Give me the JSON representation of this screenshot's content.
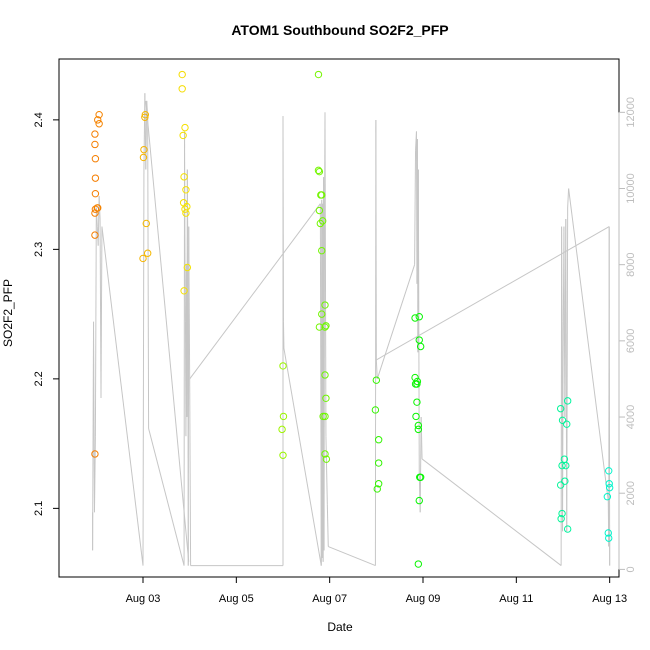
{
  "chart_data": {
    "type": "scatter",
    "title": "ATOM1 Southbound SO2F2_PFP",
    "xlabel": "Date",
    "ylabel": "SO2F2_PFP",
    "x_unit": "day",
    "xlim": [
      1.2,
      13.2
    ],
    "ylim": [
      2.047,
      2.447
    ],
    "y2lim": [
      -200,
      13400
    ],
    "x_ticks": [
      {
        "value": 3,
        "label": "Aug 03"
      },
      {
        "value": 5,
        "label": "Aug 05"
      },
      {
        "value": 7,
        "label": "Aug 07"
      },
      {
        "value": 9,
        "label": "Aug 09"
      },
      {
        "value": 11,
        "label": "Aug 11"
      },
      {
        "value": 13,
        "label": "Aug 13"
      }
    ],
    "y_ticks": [
      2.1,
      2.2,
      2.3,
      2.4
    ],
    "y2_ticks": [
      0,
      2000,
      4000,
      6000,
      8000,
      10000,
      12000
    ],
    "grid": false,
    "series": [
      {
        "kind": "points",
        "points": [
          [
            1.97,
            2.142
          ],
          [
            1.97,
            2.311
          ],
          [
            1.97,
            2.328
          ],
          [
            1.98,
            2.331
          ],
          [
            1.98,
            2.343
          ],
          [
            1.98,
            2.355
          ],
          [
            1.98,
            2.37
          ],
          [
            1.97,
            2.381
          ],
          [
            1.97,
            2.389
          ],
          [
            2.02,
            2.332
          ],
          [
            2.03,
            2.4
          ],
          [
            2.06,
            2.404
          ],
          [
            2.06,
            2.397
          ],
          [
            2.03,
            2.332
          ],
          [
            3.0,
            2.293
          ],
          [
            3.01,
            2.371
          ],
          [
            3.02,
            2.377
          ],
          [
            3.04,
            2.402
          ],
          [
            3.05,
            2.404
          ],
          [
            3.07,
            2.32
          ],
          [
            3.1,
            2.297
          ],
          [
            3.84,
            2.435
          ],
          [
            3.84,
            2.424
          ],
          [
            3.86,
            2.388
          ],
          [
            3.88,
            2.356
          ],
          [
            3.9,
            2.394
          ],
          [
            3.92,
            2.346
          ],
          [
            3.87,
            2.336
          ],
          [
            3.9,
            2.331
          ],
          [
            3.94,
            2.333
          ],
          [
            3.92,
            2.328
          ],
          [
            3.95,
            2.286
          ],
          [
            3.88,
            2.268
          ],
          [
            6.0,
            2.21
          ],
          [
            6.01,
            2.171
          ],
          [
            5.98,
            2.161
          ],
          [
            6.0,
            2.141
          ],
          [
            6.76,
            2.435
          ],
          [
            6.76,
            2.361
          ],
          [
            6.78,
            2.36
          ],
          [
            6.81,
            2.342
          ],
          [
            6.83,
            2.342
          ],
          [
            6.78,
            2.33
          ],
          [
            6.8,
            2.32
          ],
          [
            6.85,
            2.322
          ],
          [
            6.83,
            2.299
          ],
          [
            6.9,
            2.257
          ],
          [
            6.78,
            2.24
          ],
          [
            6.83,
            2.25
          ],
          [
            6.9,
            2.24
          ],
          [
            6.92,
            2.241
          ],
          [
            6.9,
            2.203
          ],
          [
            6.92,
            2.185
          ],
          [
            6.86,
            2.171
          ],
          [
            6.9,
            2.171
          ],
          [
            6.9,
            2.142
          ],
          [
            6.93,
            2.138
          ],
          [
            8.0,
            2.199
          ],
          [
            7.98,
            2.176
          ],
          [
            8.05,
            2.153
          ],
          [
            8.05,
            2.135
          ],
          [
            8.05,
            2.119
          ],
          [
            8.02,
            2.115
          ],
          [
            8.83,
            2.247
          ],
          [
            8.92,
            2.248
          ],
          [
            8.92,
            2.23
          ],
          [
            8.95,
            2.225
          ],
          [
            8.83,
            2.201
          ],
          [
            8.84,
            2.196
          ],
          [
            8.87,
            2.196
          ],
          [
            8.88,
            2.198
          ],
          [
            8.87,
            2.182
          ],
          [
            8.85,
            2.171
          ],
          [
            8.9,
            2.164
          ],
          [
            8.9,
            2.161
          ],
          [
            8.93,
            2.124
          ],
          [
            8.95,
            2.124
          ],
          [
            8.92,
            2.106
          ],
          [
            8.9,
            2.057
          ],
          [
            11.95,
            2.177
          ],
          [
            11.99,
            2.168
          ],
          [
            12.03,
            2.138
          ],
          [
            12.08,
            2.165
          ],
          [
            12.1,
            2.183
          ],
          [
            11.98,
            2.133
          ],
          [
            12.06,
            2.133
          ],
          [
            12.04,
            2.121
          ],
          [
            11.95,
            2.118
          ],
          [
            11.98,
            2.096
          ],
          [
            11.96,
            2.092
          ],
          [
            12.1,
            2.084
          ],
          [
            12.98,
            2.129
          ],
          [
            12.99,
            2.119
          ],
          [
            13.0,
            2.116
          ],
          [
            12.95,
            2.109
          ],
          [
            12.97,
            2.081
          ],
          [
            12.98,
            2.077
          ]
        ]
      },
      {
        "kind": "secondary-axis-line",
        "axis": "right",
        "color": "#c6c6c6",
        "points": [
          [
            1.92,
            1500
          ],
          [
            1.92,
            500
          ],
          [
            1.94,
            6500
          ],
          [
            1.96,
            1500
          ],
          [
            1.98,
            3500
          ],
          [
            2.0,
            9500
          ],
          [
            2.02,
            9000
          ],
          [
            2.04,
            8500
          ],
          [
            2.06,
            9800
          ],
          [
            2.08,
            9200
          ],
          [
            2.1,
            4500
          ],
          [
            2.12,
            9000
          ],
          [
            3.0,
            100
          ],
          [
            3.02,
            10500
          ],
          [
            3.04,
            12500
          ],
          [
            3.06,
            10500
          ],
          [
            3.08,
            12300
          ],
          [
            3.1,
            11900
          ],
          [
            3.12,
            3700
          ],
          [
            3.88,
            100
          ],
          [
            3.89,
            11500
          ],
          [
            3.9,
            8000
          ],
          [
            3.91,
            6500
          ],
          [
            3.92,
            3500
          ],
          [
            3.93,
            8000
          ],
          [
            3.94,
            4000
          ],
          [
            3.95,
            10500
          ],
          [
            3.96,
            8500
          ],
          [
            3.97,
            100
          ],
          [
            3.98,
            9000
          ],
          [
            4.0,
            5000
          ],
          [
            4.02,
            100
          ],
          [
            6.0,
            100
          ],
          [
            6.0,
            11900
          ],
          [
            6.01,
            6500
          ],
          [
            6.02,
            5800
          ],
          [
            6.8,
            9600
          ],
          [
            6.82,
            100
          ],
          [
            6.83,
            9700
          ],
          [
            6.84,
            300
          ],
          [
            6.85,
            9600
          ],
          [
            6.86,
            200
          ],
          [
            6.87,
            10300
          ],
          [
            6.88,
            500
          ],
          [
            6.89,
            9400
          ],
          [
            6.9,
            12000
          ],
          [
            6.92,
            3500
          ],
          [
            6.95,
            1700
          ],
          [
            6.97,
            600
          ],
          [
            7.98,
            100
          ],
          [
            7.99,
            11800
          ],
          [
            8.0,
            5500
          ],
          [
            8.02,
            5000
          ],
          [
            8.82,
            8000
          ],
          [
            8.84,
            11000
          ],
          [
            8.86,
            11500
          ],
          [
            8.87,
            7500
          ],
          [
            8.88,
            11300
          ],
          [
            8.89,
            5700
          ],
          [
            8.9,
            10500
          ],
          [
            8.92,
            2500
          ],
          [
            8.94,
            1500
          ],
          [
            8.96,
            4000
          ],
          [
            8.98,
            2900
          ],
          [
            11.96,
            100
          ],
          [
            11.97,
            9000
          ],
          [
            11.98,
            6500
          ],
          [
            11.99,
            1000
          ],
          [
            12.0,
            5000
          ],
          [
            12.02,
            9000
          ],
          [
            12.04,
            4000
          ],
          [
            12.06,
            9200
          ],
          [
            12.08,
            1000
          ],
          [
            12.1,
            9500
          ],
          [
            12.12,
            10000
          ],
          [
            12.97,
            1800
          ],
          [
            12.98,
            600
          ],
          [
            12.99,
            9000
          ],
          [
            13.0,
            100
          ],
          [
            13.0,
            1000
          ]
        ]
      }
    ],
    "connector_lines": [
      [
        2.12,
        9000,
        3.0,
        100
      ],
      [
        3.12,
        3700,
        3.88,
        100
      ],
      [
        3.06,
        12300,
        3.98,
        200
      ],
      [
        4.02,
        100,
        6.0,
        100
      ],
      [
        4.0,
        5000,
        6.8,
        9600
      ],
      [
        6.02,
        5800,
        6.82,
        100
      ],
      [
        6.97,
        600,
        7.98,
        100
      ],
      [
        8.02,
        5000,
        8.82,
        8000
      ],
      [
        8.0,
        5500,
        12.99,
        9000
      ],
      [
        8.98,
        2900,
        11.96,
        100
      ],
      [
        12.12,
        10000,
        12.97,
        1800
      ]
    ]
  }
}
